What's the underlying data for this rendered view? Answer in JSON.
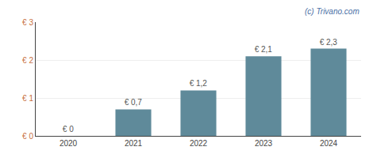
{
  "chart_data": {
    "type": "bar",
    "categories": [
      "2020",
      "2021",
      "2022",
      "2023",
      "2024"
    ],
    "values": [
      0.0,
      0.7,
      1.2,
      2.1,
      2.3
    ],
    "value_labels": [
      "€ 0",
      "€ 0,7",
      "€ 1,2",
      "€ 2,1",
      "€ 2,3"
    ],
    "data_labels": true,
    "color": "#5f8a9a",
    "ylim": [
      0,
      3.0
    ],
    "yticks": [
      {
        "value": 0,
        "label": "€ 0"
      },
      {
        "value": 1,
        "label": "€ 1"
      },
      {
        "value": 2,
        "label": "€ 2"
      },
      {
        "value": 3,
        "label": "€ 3"
      }
    ],
    "grid": true,
    "annotations": [
      "(c) Trivano.com"
    ]
  }
}
